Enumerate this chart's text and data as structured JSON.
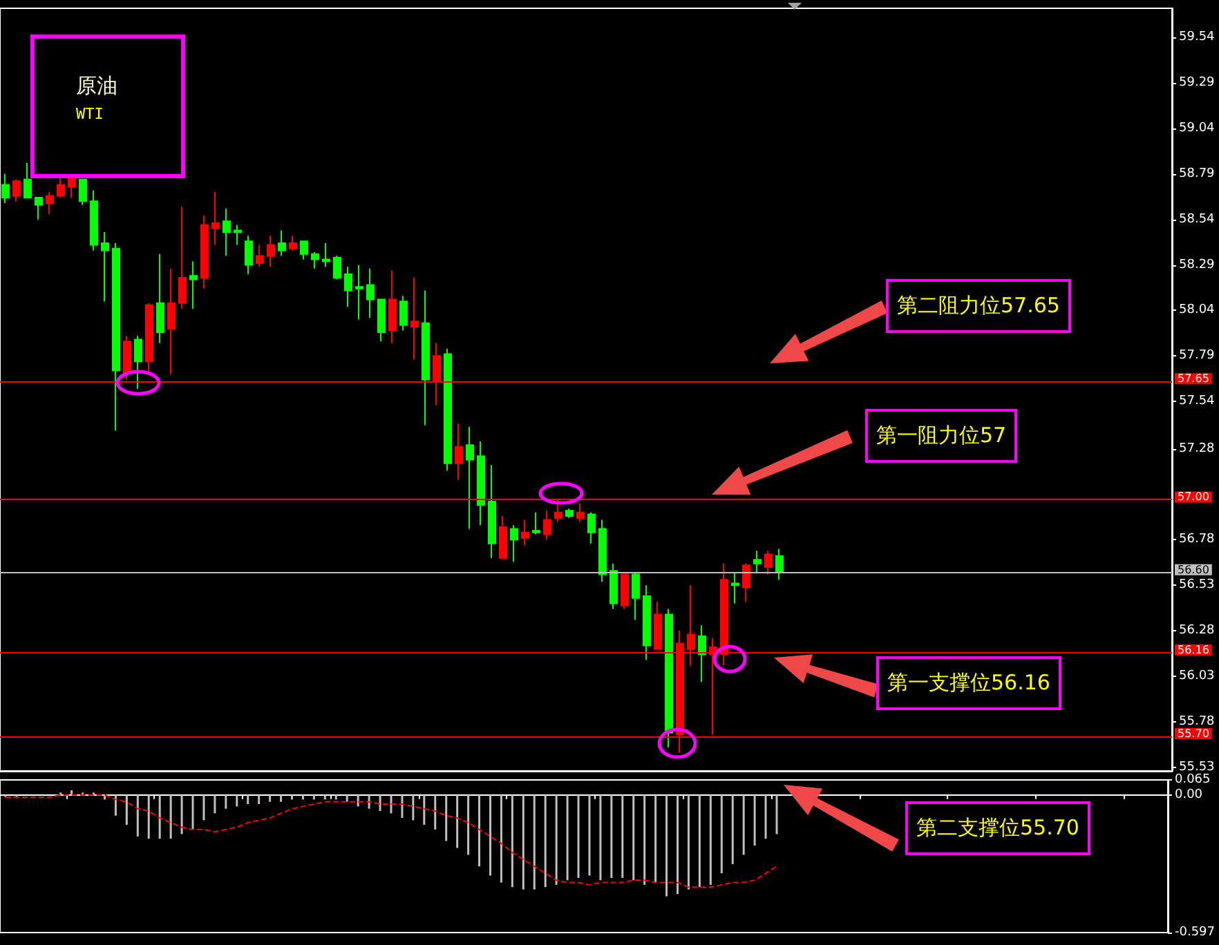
{
  "chart_data": [
    {
      "type": "candlestick",
      "categories": [
        null,
        null,
        null,
        null,
        null,
        null,
        null,
        null,
        null,
        null,
        null,
        null,
        null,
        null,
        null,
        null,
        null,
        null,
        null,
        null,
        null,
        null,
        null,
        null,
        null,
        null,
        null,
        null,
        null,
        null,
        null,
        null,
        null,
        null,
        null,
        null,
        null,
        null,
        null,
        null,
        null,
        null,
        null,
        null,
        null,
        null,
        null,
        null,
        null,
        null,
        null,
        null,
        null,
        null,
        null,
        null,
        null,
        null,
        null,
        null,
        null,
        null,
        null,
        null,
        null,
        null,
        null,
        null,
        null,
        null,
        null,
        null,
        null,
        null,
        null,
        null,
        null,
        null,
        null,
        null,
        null,
        null,
        null,
        null,
        null,
        null,
        null,
        null,
        null,
        null,
        null,
        null,
        null,
        null,
        null,
        null,
        null,
        null,
        null,
        null,
        null,
        null,
        null,
        null,
        null,
        null
      ],
      "ohlc": [
        [
          58.73,
          58.79,
          58.63,
          58.66
        ],
        [
          58.67,
          58.76,
          58.64,
          58.75
        ],
        [
          58.76,
          58.85,
          58.66,
          58.66
        ],
        [
          58.66,
          58.66,
          58.54,
          58.62
        ],
        [
          58.63,
          58.69,
          58.57,
          58.67
        ],
        [
          58.67,
          58.77,
          58.66,
          58.73
        ],
        [
          58.72,
          58.79,
          58.66,
          58.77
        ],
        [
          58.76,
          58.76,
          58.62,
          58.64
        ],
        [
          58.64,
          58.7,
          58.37,
          58.4
        ],
        [
          58.41,
          58.47,
          58.09,
          58.37
        ],
        [
          58.38,
          58.41,
          57.38,
          57.71
        ],
        [
          57.7,
          57.9,
          57.66,
          57.87
        ],
        [
          57.88,
          57.9,
          57.61,
          57.76
        ],
        [
          57.76,
          58.08,
          57.69,
          58.07
        ],
        [
          58.08,
          58.35,
          57.86,
          57.92
        ],
        [
          57.94,
          58.27,
          57.69,
          58.08
        ],
        [
          58.08,
          58.61,
          58.05,
          58.22
        ],
        [
          58.23,
          58.31,
          58.05,
          58.21
        ],
        [
          58.22,
          58.56,
          58.16,
          58.51
        ],
        [
          58.49,
          58.69,
          58.4,
          58.52
        ],
        [
          58.53,
          58.6,
          58.34,
          58.47
        ],
        [
          58.48,
          58.51,
          58.4,
          58.47
        ],
        [
          58.42,
          58.45,
          58.24,
          58.29
        ],
        [
          58.3,
          58.4,
          58.28,
          58.34
        ],
        [
          58.34,
          58.45,
          58.28,
          58.4
        ],
        [
          58.41,
          58.48,
          58.34,
          58.37
        ],
        [
          58.38,
          58.45,
          58.37,
          58.41
        ],
        [
          58.42,
          58.42,
          58.32,
          58.35
        ],
        [
          58.35,
          58.36,
          58.27,
          58.32
        ],
        [
          58.32,
          58.41,
          58.28,
          58.31
        ],
        [
          58.33,
          58.34,
          58.21,
          58.22
        ],
        [
          58.24,
          58.28,
          58.06,
          58.15
        ],
        [
          58.17,
          58.29,
          57.99,
          58.16
        ],
        [
          58.18,
          58.27,
          58.0,
          58.1
        ],
        [
          58.1,
          58.1,
          57.87,
          57.92
        ],
        [
          57.93,
          58.26,
          57.86,
          58.1
        ],
        [
          58.09,
          58.12,
          57.93,
          57.96
        ],
        [
          57.95,
          58.22,
          57.77,
          57.98
        ],
        [
          57.97,
          58.15,
          57.41,
          57.66
        ],
        [
          57.65,
          57.86,
          57.52,
          57.79
        ],
        [
          57.8,
          57.83,
          57.16,
          57.2
        ],
        [
          57.2,
          57.42,
          57.11,
          57.29
        ],
        [
          57.3,
          57.4,
          56.84,
          57.22
        ],
        [
          57.24,
          57.32,
          56.86,
          56.97
        ],
        [
          56.99,
          57.19,
          56.68,
          56.76
        ],
        [
          56.68,
          56.91,
          56.68,
          56.85
        ],
        [
          56.84,
          56.86,
          56.66,
          56.78
        ],
        [
          56.79,
          56.89,
          56.75,
          56.82
        ],
        [
          56.83,
          56.93,
          56.81,
          56.82
        ],
        [
          56.81,
          56.94,
          56.78,
          56.89
        ],
        [
          56.9,
          57.0,
          56.88,
          56.93
        ],
        [
          56.94,
          56.95,
          56.9,
          56.91
        ],
        [
          56.9,
          56.98,
          56.88,
          56.93
        ],
        [
          56.92,
          56.93,
          56.76,
          56.82
        ],
        [
          56.84,
          56.89,
          56.55,
          56.59
        ],
        [
          56.61,
          56.65,
          56.4,
          56.43
        ],
        [
          56.42,
          56.59,
          56.4,
          56.59
        ],
        [
          56.59,
          56.6,
          56.34,
          56.46
        ],
        [
          56.47,
          56.53,
          56.12,
          56.2
        ],
        [
          56.18,
          56.44,
          56.18,
          56.37
        ],
        [
          56.37,
          56.4,
          55.64,
          55.72
        ],
        [
          55.71,
          56.28,
          55.61,
          56.21
        ],
        [
          56.18,
          56.53,
          56.09,
          56.26
        ],
        [
          56.25,
          56.31,
          56.0,
          56.15
        ],
        [
          56.15,
          56.24,
          55.71,
          56.19
        ],
        [
          56.15,
          56.65,
          56.09,
          56.56
        ],
        [
          56.54,
          56.6,
          56.43,
          56.53
        ],
        [
          56.52,
          56.65,
          56.44,
          56.64
        ],
        [
          56.67,
          56.72,
          56.6,
          56.65
        ],
        [
          56.63,
          56.72,
          56.59,
          56.7
        ],
        [
          56.69,
          56.73,
          56.56,
          56.6
        ],
        null,
        null,
        null,
        null,
        null,
        null,
        null,
        null,
        null,
        null,
        null,
        null,
        null,
        null,
        null,
        null,
        null,
        null,
        null,
        null,
        null,
        null,
        null,
        null,
        null,
        null,
        null,
        null,
        null,
        null,
        null,
        null,
        null,
        null,
        null
      ],
      "colors": [
        "#00ff00",
        "#ff0000",
        "#00ff00",
        "#00ff00",
        "#ff0000",
        "#ff0000",
        "#ff0000",
        "#00ff00",
        "#00ff00",
        "#00ff00",
        "#00ff00",
        "#ff0000",
        "#00ff00",
        "#ff0000",
        "#00ff00",
        "#ff0000",
        "#ff0000",
        "#00ff00",
        "#ff0000",
        "#ff0000",
        "#00ff00",
        "#00ff00",
        "#00ff00",
        "#ff0000",
        "#ff0000",
        "#00ff00",
        "#ff0000",
        "#00ff00",
        "#00ff00",
        "#00ff00",
        "#00ff00",
        "#00ff00",
        "#00ff00",
        "#00ff00",
        "#00ff00",
        "#ff0000",
        "#00ff00",
        "#ff0000",
        "#00ff00",
        "#ff0000",
        "#00ff00",
        "#ff0000",
        "#00ff00",
        "#00ff00",
        "#00ff00",
        "#ff0000",
        "#00ff00",
        "#ff0000",
        "#00ff00",
        "#ff0000",
        "#ff0000",
        "#00ff00",
        "#ff0000",
        "#00ff00",
        "#00ff00",
        "#00ff00",
        "#ff0000",
        "#00ff00",
        "#00ff00",
        "#ff0000",
        "#00ff00",
        "#ff0000",
        "#ff0000",
        "#00ff00",
        "#ff0000",
        "#ff0000",
        "#00ff00",
        "#ff0000",
        "#00ff00",
        "#ff0000",
        "#00ff00",
        null,
        null,
        null,
        null,
        null,
        null,
        null,
        null,
        null,
        null,
        null,
        null,
        null,
        null,
        null,
        null,
        null,
        null,
        null,
        null,
        null,
        null,
        null,
        null,
        null,
        null,
        null,
        null,
        null,
        null,
        null,
        null,
        null,
        null,
        null
      ],
      "ylim": [
        55.51,
        59.7
      ],
      "yticks": [
        59.54,
        59.29,
        59.04,
        58.79,
        58.54,
        58.29,
        58.04,
        57.79,
        57.54,
        57.28,
        56.78,
        56.53,
        56.28,
        56.03,
        55.78,
        55.53
      ],
      "tick_labels": "y",
      "ref_lines": [
        {
          "axis": "y",
          "value": 57.65,
          "label": "57.65",
          "color": "#ff0000"
        },
        {
          "axis": "y",
          "value": 57.0,
          "label": "57.00",
          "color": "#ff0000"
        },
        {
          "axis": "y",
          "value": 56.6,
          "label": "56.60",
          "color": "#c0c0c0"
        },
        {
          "axis": "y",
          "value": 56.16,
          "label": "56.16",
          "color": "#ff0000"
        },
        {
          "axis": "y",
          "value": 55.7,
          "label": "55.70",
          "color": "#ff0000"
        }
      ],
      "annotations": [
        "原油",
        "WTI",
        "第二阻力位57.65",
        "第一阻力位57",
        "第一支撑位56.16",
        "第二支撑位55.70"
      ]
    },
    {
      "type": "bar",
      "categories": [
        null,
        null,
        null,
        null,
        null,
        null,
        null,
        null,
        null,
        null,
        null,
        null,
        null,
        null,
        null,
        null,
        null,
        null,
        null,
        null,
        null,
        null,
        null,
        null,
        null,
        null,
        null,
        null,
        null,
        null,
        null,
        null,
        null,
        null,
        null,
        null,
        null,
        null,
        null,
        null,
        null,
        null,
        null,
        null,
        null,
        null,
        null,
        null,
        null,
        null,
        null,
        null,
        null,
        null,
        null,
        null,
        null,
        null,
        null,
        null,
        null,
        null,
        null,
        null,
        null,
        null,
        null,
        null,
        null,
        null,
        null,
        null,
        null,
        null,
        null,
        null,
        null,
        null,
        null,
        null,
        null,
        null,
        null,
        null,
        null,
        null,
        null,
        null,
        null,
        null,
        null,
        null,
        null,
        null,
        null,
        null,
        null,
        null,
        null,
        null,
        null,
        null,
        null,
        null,
        null,
        null
      ],
      "series": [
        {
          "color": "#c0c0c0",
          "values": [
            -0.01,
            -0.01,
            0,
            0,
            0,
            0.01,
            0.02,
            0.01,
            0.01,
            -0.02,
            -0.09,
            -0.13,
            -0.18,
            -0.19,
            -0.19,
            -0.19,
            -0.17,
            -0.15,
            -0.11,
            -0.08,
            -0.06,
            -0.05,
            -0.04,
            -0.04,
            -0.03,
            -0.03,
            -0.02,
            -0.02,
            -0.02,
            -0.02,
            -0.02,
            -0.03,
            -0.05,
            -0.06,
            -0.07,
            -0.08,
            -0.1,
            -0.11,
            -0.13,
            -0.15,
            -0.2,
            -0.23,
            -0.26,
            -0.31,
            -0.35,
            -0.38,
            -0.4,
            -0.41,
            -0.41,
            -0.4,
            -0.39,
            -0.37,
            -0.36,
            -0.35,
            -0.37,
            -0.36,
            -0.36,
            -0.37,
            -0.39,
            -0.38,
            -0.44,
            -0.43,
            -0.41,
            -0.4,
            -0.39,
            -0.34,
            -0.3,
            -0.26,
            -0.22,
            -0.19,
            -0.17,
            null,
            null,
            null,
            null,
            null,
            null,
            null,
            null,
            null,
            null,
            null,
            null,
            null,
            null,
            null,
            null,
            null,
            null,
            null,
            null,
            null,
            null,
            null,
            null,
            null,
            null,
            null,
            null,
            null,
            null,
            null,
            null,
            null,
            null,
            null
          ]
        },
        {
          "type": "line",
          "color": "#ff0000",
          "line_style": "dashed",
          "values": [
            -0.01,
            -0.01,
            -0.01,
            -0.01,
            -0.01,
            0,
            0,
            0,
            0,
            0,
            -0.02,
            -0.03,
            -0.06,
            -0.07,
            -0.1,
            -0.12,
            -0.14,
            -0.15,
            -0.15,
            -0.16,
            -0.15,
            -0.14,
            -0.12,
            -0.11,
            -0.1,
            -0.08,
            -0.06,
            -0.05,
            -0.04,
            -0.03,
            -0.03,
            -0.03,
            -0.03,
            -0.03,
            -0.04,
            -0.04,
            -0.04,
            -0.05,
            -0.06,
            -0.07,
            -0.09,
            -0.1,
            -0.12,
            -0.15,
            -0.18,
            -0.21,
            -0.25,
            -0.28,
            -0.31,
            -0.34,
            -0.37,
            -0.38,
            -0.38,
            -0.39,
            -0.38,
            -0.38,
            -0.38,
            -0.37,
            -0.37,
            -0.38,
            -0.38,
            -0.38,
            -0.4,
            -0.4,
            -0.4,
            -0.39,
            -0.38,
            -0.38,
            -0.37,
            -0.34,
            -0.31,
            null,
            null,
            null,
            null,
            null,
            null,
            null,
            null,
            null,
            null,
            null,
            null,
            null,
            null,
            null,
            null,
            null,
            null,
            null,
            null,
            null,
            null,
            null,
            null,
            null,
            null,
            null,
            null,
            null,
            null,
            null,
            null,
            null,
            null,
            null
          ]
        }
      ],
      "ylim": [
        -0.597,
        0.065
      ],
      "yticks": [
        0.065,
        {
          "value": 0,
          "label": "0.00"
        },
        -0.597
      ],
      "tick_labels": "y"
    }
  ]
}
